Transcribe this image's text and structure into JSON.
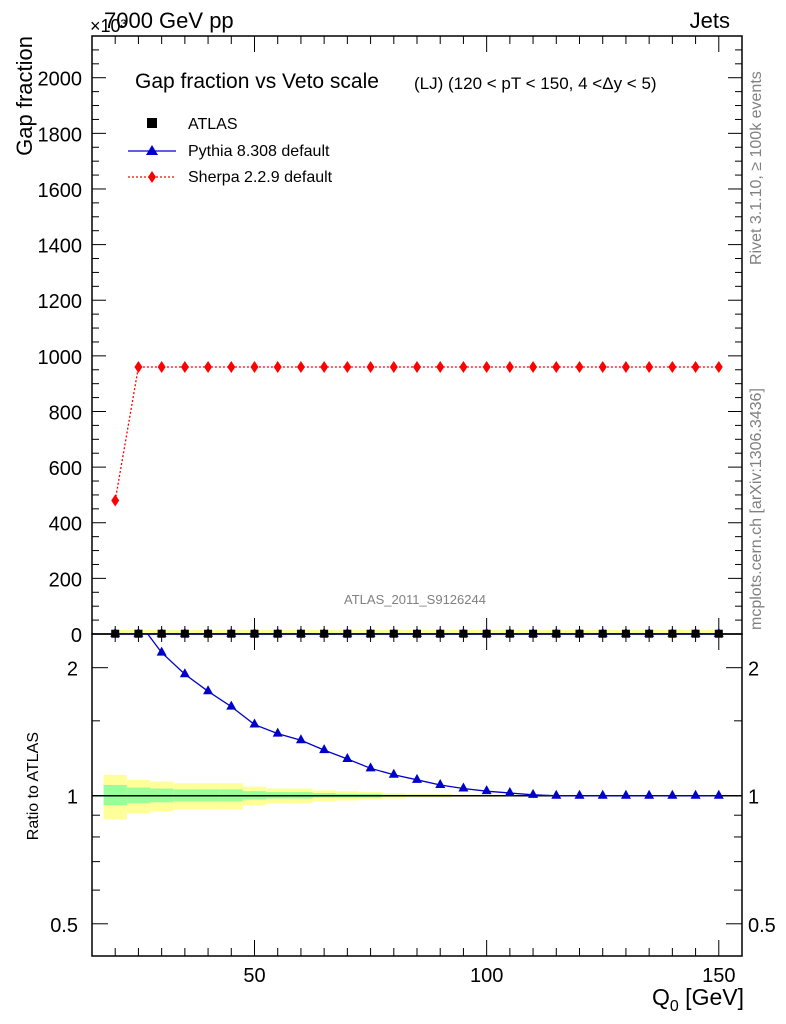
{
  "header": {
    "left": "7000 GeV pp",
    "right": "Jets",
    "exponent": "×10³"
  },
  "side_labels": {
    "rivet": "Rivet 3.1.10, ≥ 100k events",
    "mcplots": "mcplots.cern.ch [arXiv:1306.3436]"
  },
  "chart_data": [
    {
      "type": "line",
      "title": "Gap fraction vs Veto scale",
      "subtitle": "(LJ) (120 < pT < 150, 4 <Δy < 5)",
      "watermark": "ATLAS_2011_S9126244",
      "ylabel": "Gap fraction",
      "xlim": [
        15,
        155
      ],
      "ylim": [
        0,
        2150
      ],
      "yticks": [
        0,
        200,
        400,
        600,
        800,
        1000,
        1200,
        1400,
        1600,
        1800,
        2000
      ],
      "yscale_note": "values in units of 10^-3",
      "legend_position": "top-left",
      "x": [
        20,
        25,
        30,
        35,
        40,
        45,
        50,
        55,
        60,
        65,
        70,
        75,
        80,
        85,
        90,
        95,
        100,
        105,
        110,
        115,
        120,
        125,
        130,
        135,
        140,
        145,
        150
      ],
      "series": [
        {
          "name": "ATLAS",
          "marker": "square",
          "color": "#000000",
          "values": [
            1,
            1,
            1,
            1,
            1,
            1,
            1,
            1,
            1,
            1,
            1,
            1,
            1,
            1,
            1,
            1,
            1,
            1,
            1,
            1,
            1,
            1,
            1,
            1,
            1,
            1,
            1
          ]
        },
        {
          "name": "Pythia 8.308 default",
          "marker": "triangle",
          "color": "#0000cc",
          "values": [
            1,
            1,
            1,
            1,
            1,
            1,
            1,
            1,
            1,
            1,
            1,
            1,
            1,
            1,
            1,
            1,
            1,
            1,
            1,
            1,
            1,
            1,
            1,
            1,
            1,
            1,
            1
          ]
        },
        {
          "name": "Sherpa 2.2.9 default",
          "marker": "diamond",
          "color": "#ff0000",
          "values": [
            480,
            960,
            960,
            960,
            960,
            960,
            960,
            960,
            960,
            960,
            960,
            960,
            960,
            960,
            960,
            960,
            960,
            960,
            960,
            960,
            960,
            960,
            960,
            960,
            960,
            960,
            960
          ]
        }
      ]
    },
    {
      "type": "line",
      "ylabel": "Ratio to ATLAS",
      "xlabel": "Q",
      "xlabel_sub": "0",
      "xlabel_unit": " [GeV]",
      "xlim": [
        15,
        155
      ],
      "ylim": [
        0.42,
        2.4
      ],
      "yscale": "log",
      "yticks": [
        0.5,
        1,
        2
      ],
      "xticks": [
        50,
        100,
        150
      ],
      "x": [
        20,
        25,
        30,
        35,
        40,
        45,
        50,
        55,
        60,
        65,
        70,
        75,
        80,
        85,
        90,
        95,
        100,
        105,
        110,
        115,
        120,
        125,
        130,
        135,
        140,
        145,
        150
      ],
      "band_outer": {
        "color": "#ffff99",
        "lo": [
          0.88,
          0.91,
          0.92,
          0.93,
          0.93,
          0.93,
          0.95,
          0.96,
          0.96,
          0.97,
          0.975,
          0.98,
          0.985,
          0.99,
          0.99,
          0.995,
          0.995,
          1.0,
          1.0,
          1.0,
          1.0,
          1.0,
          1.0,
          1.0,
          1.0,
          1.0,
          1.0
        ],
        "hi": [
          1.12,
          1.09,
          1.08,
          1.07,
          1.07,
          1.07,
          1.05,
          1.04,
          1.04,
          1.03,
          1.025,
          1.02,
          1.015,
          1.01,
          1.01,
          1.005,
          1.005,
          1.0,
          1.0,
          1.0,
          1.0,
          1.0,
          1.0,
          1.0,
          1.0,
          1.0,
          1.0
        ]
      },
      "band_inner": {
        "color": "#99ff99",
        "lo": [
          0.95,
          0.96,
          0.965,
          0.97,
          0.97,
          0.97,
          0.98,
          0.985,
          0.985,
          0.99,
          0.99,
          0.99,
          0.995,
          0.995,
          0.995,
          1.0,
          1.0,
          1.0,
          1.0,
          1.0,
          1.0,
          1.0,
          1.0,
          1.0,
          1.0,
          1.0,
          1.0
        ],
        "hi": [
          1.06,
          1.045,
          1.04,
          1.035,
          1.035,
          1.035,
          1.025,
          1.02,
          1.02,
          1.015,
          1.01,
          1.01,
          1.005,
          1.005,
          1.005,
          1.0,
          1.0,
          1.0,
          1.0,
          1.0,
          1.0,
          1.0,
          1.0,
          1.0,
          1.0,
          1.0,
          1.0
        ]
      },
      "series": [
        {
          "name": "Pythia 8.308 default",
          "marker": "triangle",
          "color": "#0000cc",
          "x": [
            27,
            30,
            35,
            40,
            45,
            50,
            55,
            60,
            65,
            70,
            75,
            80,
            85,
            90,
            95,
            100,
            105,
            110,
            115,
            120,
            125,
            130,
            135,
            140,
            145,
            150
          ],
          "values": [
            2.4,
            2.17,
            1.93,
            1.76,
            1.62,
            1.47,
            1.4,
            1.35,
            1.28,
            1.22,
            1.16,
            1.12,
            1.09,
            1.06,
            1.04,
            1.025,
            1.015,
            1.005,
            1.0,
            1.0,
            1.0,
            1.0,
            1.0,
            1.0,
            1.0,
            1.0
          ]
        }
      ]
    }
  ]
}
